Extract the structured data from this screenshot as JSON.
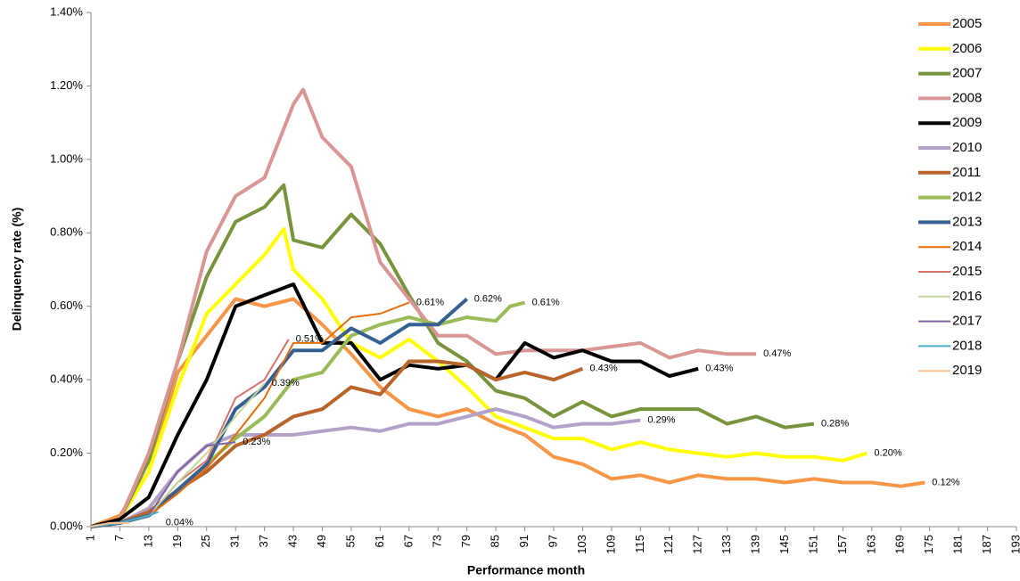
{
  "chart_data": {
    "type": "line",
    "y_label": "Delinquency rate (%)",
    "x_label": "Performance month",
    "xlim": [
      1,
      193
    ],
    "xticks": [
      1,
      7,
      13,
      19,
      25,
      31,
      37,
      43,
      49,
      55,
      61,
      67,
      73,
      79,
      85,
      91,
      97,
      103,
      109,
      115,
      121,
      127,
      133,
      139,
      145,
      151,
      157,
      163,
      169,
      175,
      181,
      187,
      193
    ],
    "ylim": [
      0,
      1.4
    ],
    "yticks": [
      {
        "value": 0,
        "label": "0.00%"
      },
      {
        "value": 0.2,
        "label": "0.20%"
      },
      {
        "value": 0.4,
        "label": "0.40%"
      },
      {
        "value": 0.6,
        "label": "0.60%"
      },
      {
        "value": 0.8,
        "label": "0.80%"
      },
      {
        "value": 1.0,
        "label": "1.00%"
      },
      {
        "value": 1.2,
        "label": "1.20%"
      },
      {
        "value": 1.4,
        "label": "1.40%"
      }
    ],
    "legend": "right",
    "series": [
      {
        "name": "2005",
        "color": "#f79646",
        "width": 4,
        "x": [
          1,
          7,
          13,
          19,
          25,
          31,
          37,
          43,
          49,
          55,
          61,
          67,
          73,
          79,
          85,
          91,
          97,
          103,
          109,
          115,
          121,
          127,
          133,
          139,
          145,
          151,
          157,
          163,
          169,
          174
        ],
        "values": [
          0,
          0.03,
          0.15,
          0.42,
          0.52,
          0.62,
          0.6,
          0.62,
          0.55,
          0.47,
          0.38,
          0.32,
          0.3,
          0.32,
          0.28,
          0.25,
          0.19,
          0.17,
          0.13,
          0.14,
          0.12,
          0.14,
          0.13,
          0.13,
          0.12,
          0.13,
          0.12,
          0.12,
          0.11,
          0.12
        ],
        "end_label": "0.12%"
      },
      {
        "name": "2006",
        "color": "#ffff00",
        "width": 4,
        "x": [
          1,
          7,
          13,
          19,
          25,
          31,
          37,
          41,
          43,
          49,
          55,
          61,
          67,
          73,
          79,
          85,
          91,
          97,
          103,
          109,
          115,
          121,
          127,
          133,
          139,
          145,
          151,
          157,
          162
        ],
        "values": [
          0,
          0.02,
          0.15,
          0.38,
          0.58,
          0.66,
          0.74,
          0.81,
          0.7,
          0.62,
          0.5,
          0.46,
          0.51,
          0.45,
          0.38,
          0.3,
          0.27,
          0.24,
          0.24,
          0.21,
          0.23,
          0.21,
          0.2,
          0.19,
          0.2,
          0.19,
          0.19,
          0.18,
          0.2
        ],
        "end_label": "0.20%"
      },
      {
        "name": "2007",
        "color": "#77933c",
        "width": 4,
        "x": [
          1,
          7,
          13,
          19,
          25,
          31,
          37,
          41,
          43,
          49,
          55,
          61,
          67,
          73,
          79,
          85,
          91,
          97,
          103,
          109,
          115,
          121,
          127,
          133,
          139,
          145,
          151
        ],
        "values": [
          0,
          0.02,
          0.18,
          0.45,
          0.68,
          0.83,
          0.87,
          0.93,
          0.78,
          0.76,
          0.85,
          0.77,
          0.63,
          0.5,
          0.45,
          0.37,
          0.35,
          0.3,
          0.34,
          0.3,
          0.32,
          0.32,
          0.32,
          0.28,
          0.3,
          0.27,
          0.28
        ],
        "end_label": "0.28%"
      },
      {
        "name": "2008",
        "color": "#d99694",
        "width": 4,
        "x": [
          1,
          7,
          13,
          19,
          25,
          31,
          37,
          43,
          45,
          49,
          55,
          61,
          67,
          73,
          79,
          85,
          91,
          97,
          103,
          109,
          115,
          121,
          127,
          133,
          139
        ],
        "values": [
          0,
          0.02,
          0.2,
          0.45,
          0.75,
          0.9,
          0.95,
          1.15,
          1.19,
          1.06,
          0.98,
          0.72,
          0.62,
          0.52,
          0.52,
          0.47,
          0.48,
          0.48,
          0.48,
          0.49,
          0.5,
          0.46,
          0.48,
          0.47,
          0.47
        ],
        "end_label": "0.47%"
      },
      {
        "name": "2009",
        "color": "#000000",
        "width": 4,
        "x": [
          1,
          7,
          13,
          19,
          25,
          31,
          37,
          43,
          49,
          55,
          61,
          67,
          73,
          79,
          85,
          91,
          97,
          103,
          109,
          115,
          121,
          127
        ],
        "values": [
          0,
          0.02,
          0.08,
          0.25,
          0.4,
          0.6,
          0.63,
          0.66,
          0.5,
          0.5,
          0.4,
          0.44,
          0.43,
          0.44,
          0.4,
          0.5,
          0.46,
          0.48,
          0.45,
          0.45,
          0.41,
          0.43
        ],
        "end_label": "0.43%"
      },
      {
        "name": "2010",
        "color": "#b3a2c7",
        "width": 4,
        "x": [
          1,
          7,
          13,
          19,
          25,
          31,
          37,
          43,
          49,
          55,
          61,
          67,
          73,
          79,
          85,
          91,
          97,
          103,
          109,
          115
        ],
        "values": [
          0,
          0.01,
          0.05,
          0.15,
          0.22,
          0.25,
          0.25,
          0.25,
          0.26,
          0.27,
          0.26,
          0.28,
          0.28,
          0.3,
          0.32,
          0.3,
          0.27,
          0.28,
          0.28,
          0.29
        ],
        "end_label": "0.29%"
      },
      {
        "name": "2011",
        "color": "#b8652b",
        "width": 4,
        "x": [
          1,
          7,
          13,
          19,
          25,
          31,
          37,
          43,
          49,
          55,
          61,
          67,
          73,
          79,
          85,
          91,
          97,
          103
        ],
        "values": [
          0,
          0.01,
          0.04,
          0.1,
          0.15,
          0.22,
          0.25,
          0.3,
          0.32,
          0.38,
          0.36,
          0.45,
          0.45,
          0.44,
          0.4,
          0.42,
          0.4,
          0.43
        ],
        "end_label": "0.43%"
      },
      {
        "name": "2012",
        "color": "#9bbb59",
        "width": 4,
        "x": [
          1,
          7,
          13,
          19,
          25,
          31,
          37,
          43,
          49,
          55,
          61,
          67,
          73,
          79,
          85,
          88,
          91
        ],
        "values": [
          0,
          0.01,
          0.03,
          0.1,
          0.17,
          0.24,
          0.3,
          0.4,
          0.42,
          0.52,
          0.55,
          0.57,
          0.55,
          0.57,
          0.56,
          0.6,
          0.61
        ],
        "end_label": "0.61%"
      },
      {
        "name": "2013",
        "color": "#376092",
        "width": 4,
        "x": [
          1,
          7,
          13,
          19,
          25,
          31,
          37,
          43,
          49,
          55,
          61,
          67,
          73,
          79
        ],
        "values": [
          0,
          0.01,
          0.03,
          0.1,
          0.17,
          0.32,
          0.38,
          0.48,
          0.48,
          0.54,
          0.5,
          0.55,
          0.55,
          0.62
        ],
        "end_label": "0.62%"
      },
      {
        "name": "2014",
        "color": "#e46c0a",
        "width": 2,
        "x": [
          1,
          7,
          13,
          19,
          25,
          31,
          37,
          43,
          49,
          55,
          61,
          67
        ],
        "values": [
          0,
          0.01,
          0.03,
          0.09,
          0.16,
          0.25,
          0.35,
          0.5,
          0.5,
          0.57,
          0.58,
          0.61
        ],
        "end_label": "0.61%"
      },
      {
        "name": "2015",
        "color": "#d9716b",
        "width": 2,
        "x": [
          1,
          7,
          13,
          19,
          25,
          31,
          37,
          42
        ],
        "values": [
          0,
          0.01,
          0.03,
          0.12,
          0.18,
          0.35,
          0.4,
          0.51
        ],
        "end_label": "0.51%"
      },
      {
        "name": "2016",
        "color": "#c3d69b",
        "width": 2,
        "x": [
          1,
          7,
          13,
          19,
          25,
          31,
          37
        ],
        "values": [
          0,
          0.01,
          0.03,
          0.12,
          0.2,
          0.3,
          0.39
        ],
        "end_label": "0.39%"
      },
      {
        "name": "2017",
        "color": "#8064a2",
        "width": 2,
        "x": [
          1,
          7,
          13,
          19,
          25,
          31
        ],
        "values": [
          0,
          0.01,
          0.03,
          0.15,
          0.22,
          0.23
        ],
        "end_label": "0.23%"
      },
      {
        "name": "2018",
        "color": "#4bacc6",
        "width": 2,
        "x": [
          1,
          7,
          13,
          15
        ],
        "values": [
          0,
          0.01,
          0.03,
          0.04
        ],
        "end_label": "0.04%"
      },
      {
        "name": "2019",
        "color": "#fac090",
        "width": 2,
        "x": [
          1,
          5,
          9
        ],
        "values": [
          0,
          0.01,
          0.01
        ]
      }
    ]
  }
}
